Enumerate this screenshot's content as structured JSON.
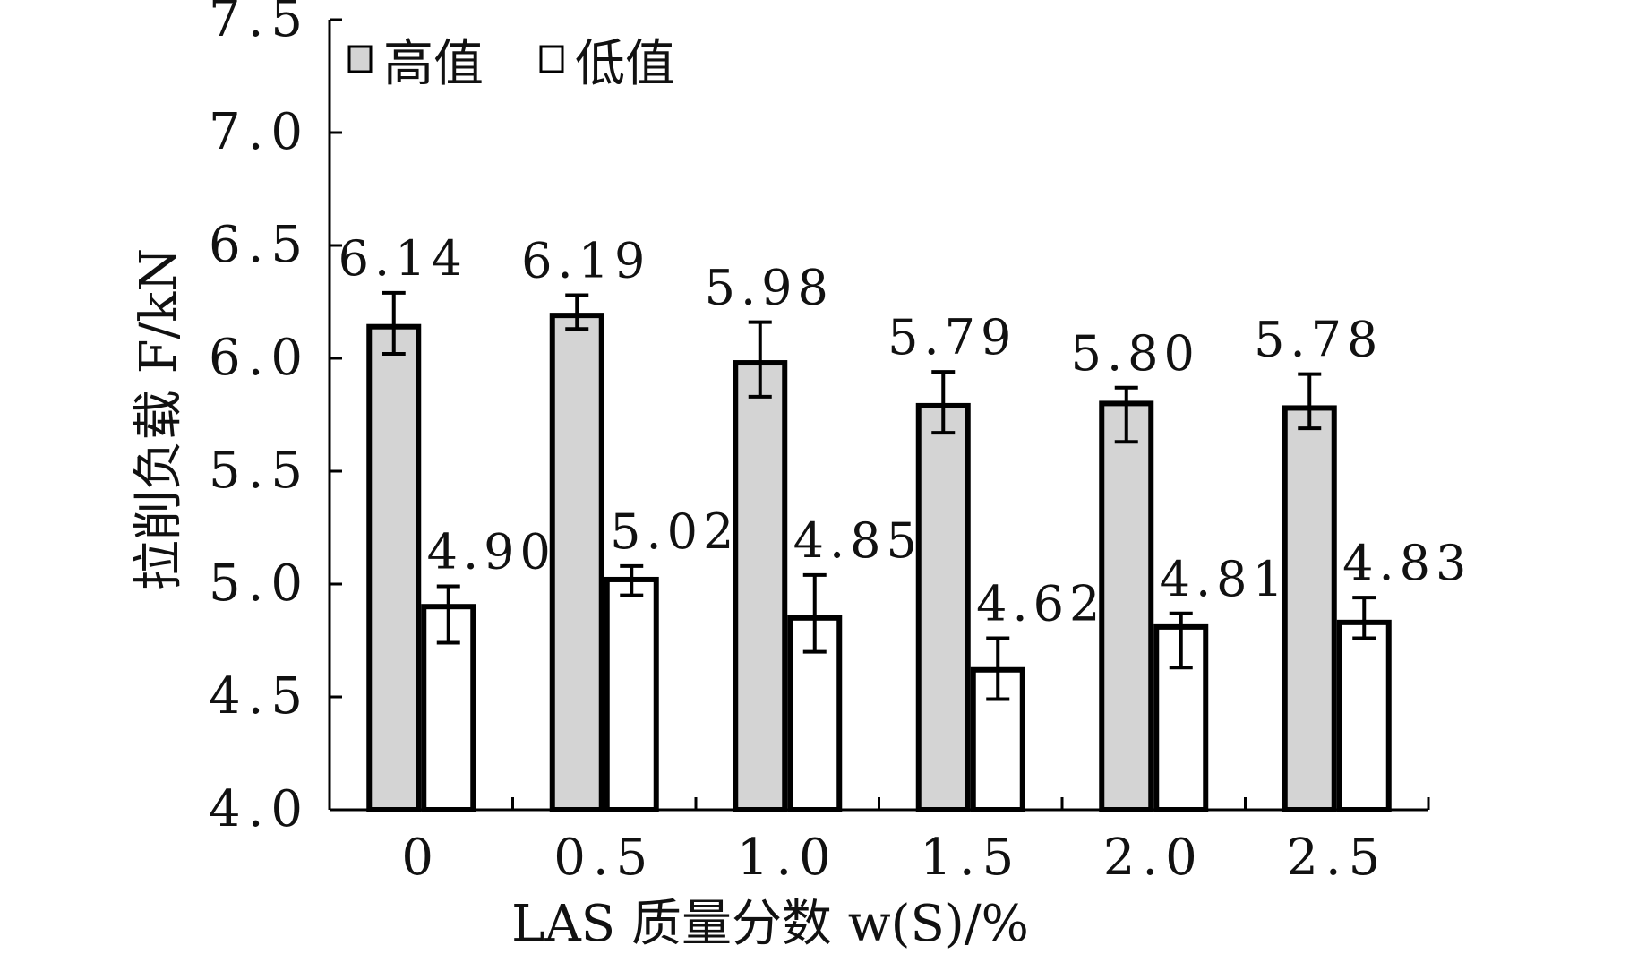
{
  "colors": {
    "high_fill": "#d4d4d4",
    "low_fill": "#ffffff",
    "stroke": "#000000"
  },
  "chart_data": {
    "type": "bar",
    "title": "",
    "xlabel": "LAS 质量分数 w(S)/%",
    "ylabel": "拉削负载 F/kN",
    "categories": [
      "0",
      "0.5",
      "1.0",
      "1.5",
      "2.0",
      "2.5"
    ],
    "yticks": [
      "4.0",
      "4.5",
      "5.0",
      "5.5",
      "6.0",
      "6.5",
      "7.0",
      "7.5"
    ],
    "ylim": [
      4.0,
      7.5
    ],
    "grid": false,
    "legend_position": "top-left",
    "series": [
      {
        "name": "高值",
        "values": [
          6.14,
          6.19,
          5.98,
          5.79,
          5.8,
          5.78
        ],
        "labels": [
          "6.14",
          "6.19",
          "5.98",
          "5.79",
          "5.80",
          "5.78"
        ],
        "error": [
          [
            6.02,
            6.29
          ],
          [
            6.13,
            6.28
          ],
          [
            5.83,
            6.16
          ],
          [
            5.67,
            5.94
          ],
          [
            5.63,
            5.87
          ],
          [
            5.69,
            5.93
          ]
        ]
      },
      {
        "name": "低值",
        "values": [
          4.9,
          5.02,
          4.85,
          4.62,
          4.81,
          4.83
        ],
        "labels": [
          "4.90",
          "5.02",
          "4.85",
          "4.62",
          "4.81",
          "4.83"
        ],
        "error": [
          [
            4.74,
            4.99
          ],
          [
            4.95,
            5.08
          ],
          [
            4.7,
            5.04
          ],
          [
            4.49,
            4.76
          ],
          [
            4.63,
            4.87
          ],
          [
            4.76,
            4.94
          ]
        ]
      }
    ]
  }
}
